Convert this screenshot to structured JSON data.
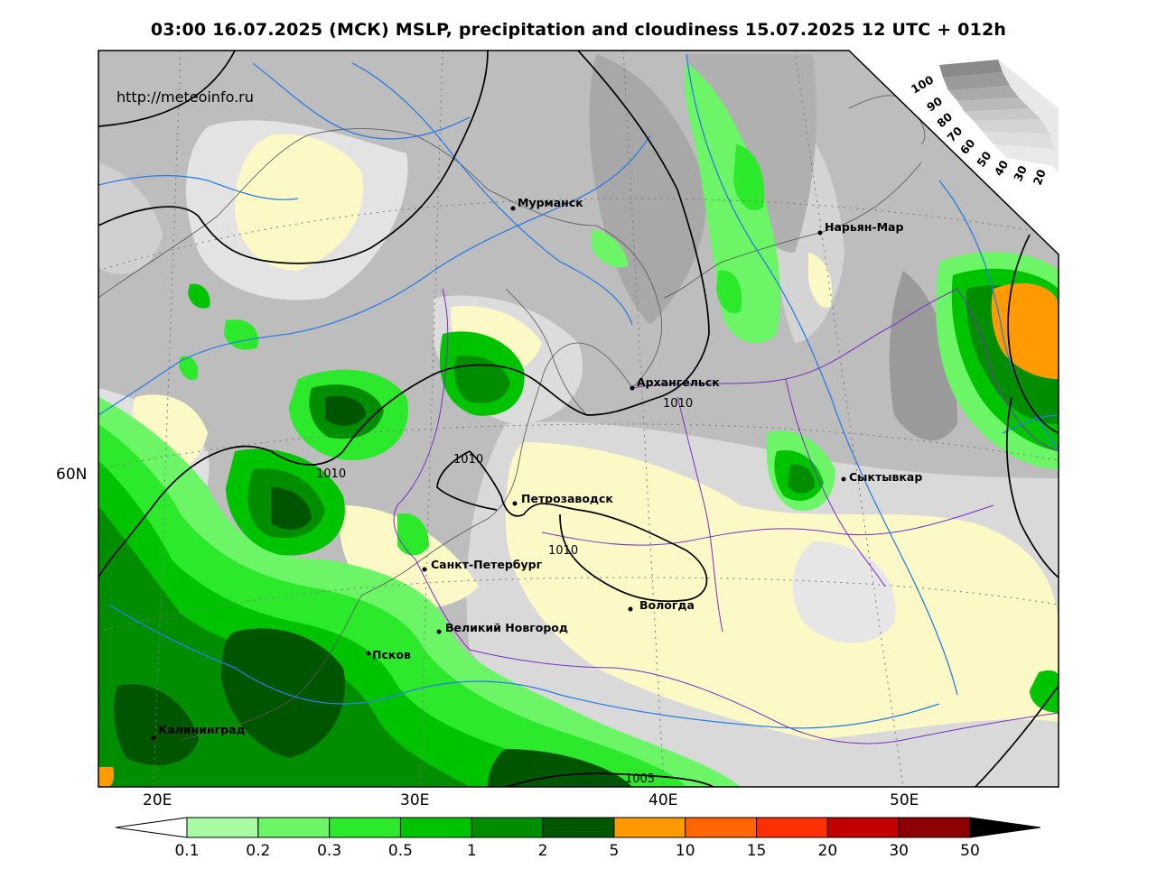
{
  "title": "03:00 16.07.2025 (МСК) MSLP, precipitation and cloudiness 15.07.2025 12 UTC + 012h",
  "watermark": "http://meteoinfo.ru",
  "lon_labels": [
    "20E",
    "30E",
    "40E",
    "50E"
  ],
  "lat_labels": [
    "60N"
  ],
  "cities": [
    {
      "name": "Мурманск"
    },
    {
      "name": "Нарьян-Мар"
    },
    {
      "name": "Архангельск"
    },
    {
      "name": "Сыктывкар"
    },
    {
      "name": "Петрозаводск"
    },
    {
      "name": "Санкт-Петербург"
    },
    {
      "name": "Вологда"
    },
    {
      "name": "Великий Новгород"
    },
    {
      "name": "Псков"
    },
    {
      "name": "Калининград"
    }
  ],
  "isobar_labels": [
    "1010",
    "1010",
    "1010",
    "1010",
    "1005"
  ],
  "cloud_scale": [
    "100",
    "90",
    "80",
    "70",
    "60",
    "50",
    "40",
    "30",
    "20"
  ],
  "precip_legend": {
    "colors": [
      "#a9fba3",
      "#6cf566",
      "#2ce92c",
      "#00c300",
      "#008e00",
      "#005600",
      "#ff9a00",
      "#ff6500",
      "#ff2f00",
      "#c20000",
      "#8e0000"
    ],
    "labels": [
      "0.1",
      "0.2",
      "0.3",
      "0.5",
      "1",
      "2",
      "5",
      "10",
      "15",
      "20",
      "30",
      "50"
    ]
  }
}
